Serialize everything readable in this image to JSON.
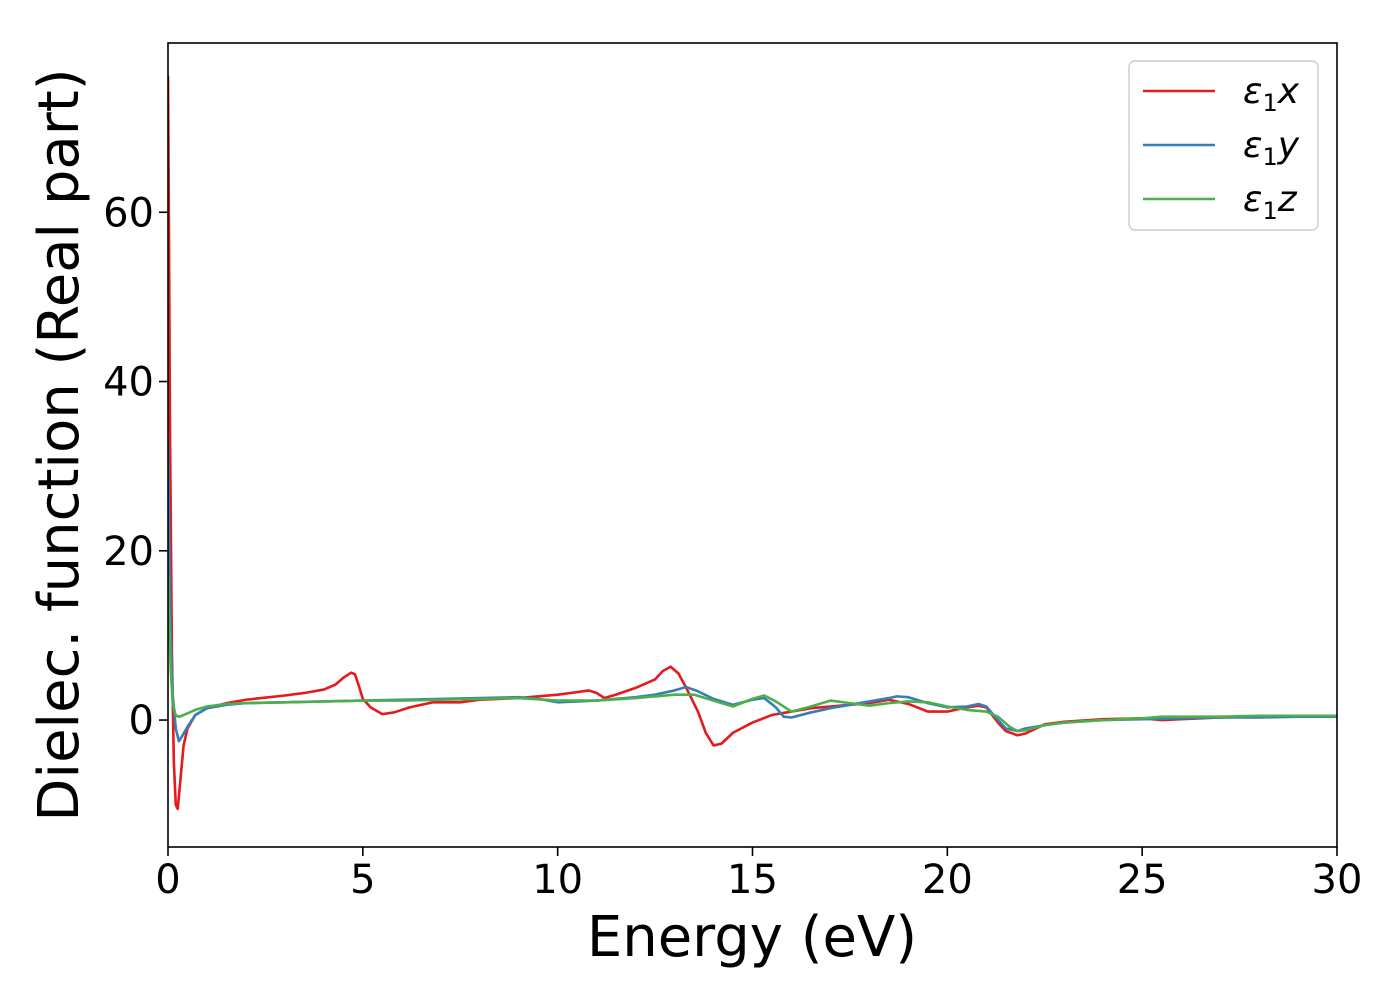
{
  "chart_data": {
    "type": "line",
    "xlabel": "Energy (eV)",
    "ylabel": "Dielec. function (Real part)",
    "xlim": [
      0,
      30
    ],
    "ylim": [
      -15,
      80
    ],
    "xticks": [
      0,
      5,
      10,
      15,
      20,
      25,
      30
    ],
    "yticks": [
      0,
      20,
      40,
      60
    ],
    "grid": false,
    "legend_position": "top-right",
    "series": [
      {
        "name": "ε1x",
        "legend_symbol": "ε",
        "legend_subscript": "1",
        "legend_suffix": "x",
        "color": "#e41a1c",
        "x": [
          0.0,
          0.02,
          0.05,
          0.1,
          0.15,
          0.2,
          0.25,
          0.3,
          0.4,
          0.5,
          0.7,
          1.0,
          1.5,
          2.0,
          3.0,
          3.5,
          4.0,
          4.3,
          4.5,
          4.7,
          4.8,
          4.9,
          5.0,
          5.2,
          5.5,
          5.8,
          6.2,
          6.8,
          7.5,
          8.0,
          9.0,
          10.0,
          10.5,
          10.8,
          11.0,
          11.2,
          11.5,
          12.0,
          12.5,
          12.7,
          12.9,
          13.1,
          13.3,
          13.6,
          13.8,
          14.0,
          14.2,
          14.5,
          15.0,
          15.5,
          16.0,
          16.5,
          17.0,
          17.5,
          18.0,
          18.5,
          19.0,
          19.5,
          20.0,
          20.5,
          20.8,
          21.0,
          21.3,
          21.5,
          21.8,
          22.0,
          22.5,
          23.0,
          24.0,
          25.0,
          25.5,
          26.0,
          27.0,
          28.0,
          29.0,
          30.0
        ],
        "y": [
          76.0,
          62.0,
          35.0,
          8.0,
          -5.0,
          -10.0,
          -10.5,
          -8.0,
          -3.0,
          -1.0,
          0.6,
          1.4,
          2.0,
          2.4,
          2.9,
          3.2,
          3.6,
          4.2,
          5.0,
          5.6,
          5.4,
          4.0,
          2.5,
          1.5,
          0.7,
          0.9,
          1.5,
          2.1,
          2.1,
          2.4,
          2.6,
          3.0,
          3.3,
          3.5,
          3.2,
          2.6,
          3.0,
          3.8,
          4.8,
          5.8,
          6.3,
          5.5,
          3.8,
          1.0,
          -1.5,
          -3.0,
          -2.8,
          -1.5,
          -0.3,
          0.6,
          1.0,
          1.4,
          1.6,
          1.8,
          2.0,
          2.4,
          1.9,
          1.0,
          1.0,
          1.5,
          1.7,
          1.5,
          -0.3,
          -1.3,
          -1.8,
          -1.6,
          -0.5,
          -0.2,
          0.1,
          0.2,
          0.0,
          0.1,
          0.3,
          0.4,
          0.4,
          0.5
        ]
      },
      {
        "name": "ε1y",
        "legend_symbol": "ε",
        "legend_subscript": "1",
        "legend_suffix": "y",
        "color": "#377eb8",
        "x": [
          0.0,
          0.03,
          0.07,
          0.12,
          0.2,
          0.28,
          0.35,
          0.5,
          0.7,
          1.0,
          1.5,
          2.0,
          3.0,
          4.0,
          5.0,
          6.0,
          7.0,
          8.0,
          9.0,
          9.5,
          10.0,
          10.5,
          11.0,
          12.0,
          12.5,
          13.0,
          13.3,
          13.6,
          14.0,
          14.5,
          15.0,
          15.3,
          15.6,
          15.8,
          16.0,
          16.5,
          17.0,
          17.5,
          18.0,
          18.5,
          18.7,
          19.0,
          19.5,
          20.0,
          20.5,
          20.8,
          21.0,
          21.3,
          21.5,
          21.8,
          22.0,
          22.5,
          23.0,
          24.0,
          25.0,
          26.0,
          27.0,
          28.0,
          29.0,
          30.0
        ],
        "y": [
          33.0,
          22.0,
          10.0,
          3.0,
          -1.0,
          -2.5,
          -2.0,
          -0.8,
          0.6,
          1.4,
          1.8,
          2.0,
          2.1,
          2.2,
          2.3,
          2.4,
          2.5,
          2.6,
          2.7,
          2.5,
          2.1,
          2.2,
          2.3,
          2.7,
          3.0,
          3.5,
          3.9,
          3.4,
          2.5,
          1.8,
          2.4,
          2.6,
          1.5,
          0.4,
          0.3,
          0.9,
          1.4,
          1.8,
          2.2,
          2.6,
          2.8,
          2.7,
          2.0,
          1.5,
          1.6,
          1.9,
          1.6,
          0.0,
          -1.0,
          -1.3,
          -1.0,
          -0.6,
          -0.3,
          0.0,
          0.1,
          0.2,
          0.3,
          0.3,
          0.4,
          0.4
        ]
      },
      {
        "name": "ε1z",
        "legend_symbol": "ε",
        "legend_subscript": "1",
        "legend_suffix": "z",
        "color": "#4daf4a",
        "x": [
          0.0,
          0.03,
          0.07,
          0.12,
          0.2,
          0.3,
          0.5,
          0.7,
          1.0,
          1.5,
          2.0,
          3.0,
          4.0,
          5.0,
          6.0,
          7.0,
          8.0,
          9.0,
          10.0,
          11.0,
          12.0,
          13.0,
          13.5,
          14.0,
          14.5,
          15.0,
          15.3,
          15.6,
          16.0,
          16.5,
          17.0,
          17.5,
          18.0,
          18.5,
          19.0,
          19.5,
          20.0,
          20.5,
          21.0,
          21.3,
          21.6,
          21.8,
          22.0,
          22.5,
          23.0,
          24.0,
          25.0,
          25.5,
          26.0,
          27.0,
          28.0,
          29.0,
          30.0
        ],
        "y": [
          17.0,
          12.0,
          6.0,
          2.0,
          0.5,
          0.4,
          0.8,
          1.2,
          1.6,
          1.9,
          2.0,
          2.1,
          2.2,
          2.3,
          2.3,
          2.4,
          2.5,
          2.6,
          2.3,
          2.3,
          2.6,
          3.0,
          3.0,
          2.3,
          1.6,
          2.5,
          2.9,
          2.2,
          1.0,
          1.6,
          2.3,
          2.0,
          1.7,
          2.0,
          2.2,
          2.1,
          1.6,
          1.2,
          1.0,
          0.4,
          -0.8,
          -1.3,
          -1.2,
          -0.6,
          -0.3,
          0.0,
          0.2,
          0.4,
          0.4,
          0.4,
          0.5,
          0.5,
          0.5
        ]
      }
    ]
  }
}
